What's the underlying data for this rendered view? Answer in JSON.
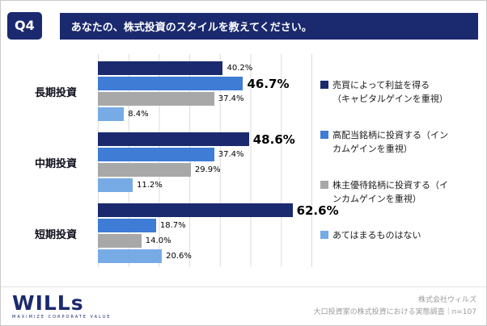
{
  "header": {
    "q_label": "Q4",
    "title": "あなたの、株式投資のスタイルを教えてください。"
  },
  "chart_data": {
    "type": "bar",
    "orientation": "horizontal",
    "title": "あなたの、株式投資のスタイルを教えてください。",
    "categories": [
      "長期投資",
      "中期投資",
      "短期投資"
    ],
    "series": [
      {
        "name": "売買によって利益を得る（キャピタルゲインを重視）",
        "legend_label": "売買によって利益を得る\n（キャピタルゲインを重視）",
        "color": "#1b2a6e",
        "values": [
          40.2,
          48.6,
          62.6
        ],
        "labels": [
          "40.2%",
          "48.6%",
          "62.6%"
        ],
        "emphasis": [
          false,
          true,
          true
        ]
      },
      {
        "name": "高配当銘柄に投資する（インカムゲインを重視）",
        "legend_label": "高配当銘柄に投資する（イン\nカムゲインを重視）",
        "color": "#3e7cd6",
        "values": [
          46.7,
          37.4,
          18.7
        ],
        "labels": [
          "46.7%",
          "37.4%",
          "18.7%"
        ],
        "emphasis": [
          true,
          false,
          false
        ]
      },
      {
        "name": "株主優待銘柄に投資する（インカムゲインを重視）",
        "legend_label": "株主優待銘柄に投資する（イ\nンカムゲインを重視）",
        "color": "#a8a8a8",
        "values": [
          37.4,
          29.9,
          14.0
        ],
        "labels": [
          "37.4%",
          "29.9%",
          "14.0%"
        ],
        "emphasis": [
          false,
          false,
          false
        ]
      },
      {
        "name": "あてはまるものはない",
        "legend_label": "あてはまるものはない",
        "color": "#77abe5",
        "values": [
          8.4,
          11.2,
          20.6
        ],
        "labels": [
          "8.4%",
          "11.2%",
          "20.6%"
        ],
        "emphasis": [
          false,
          false,
          false
        ]
      }
    ],
    "xlim": [
      0,
      70
    ],
    "gridline_step": 10,
    "grid": true,
    "legend_position": "right",
    "value_suffix": "%"
  },
  "footer": {
    "logo_text": "WILLs",
    "logo_tagline": "MAXIMIZE CORPORATE VALUE",
    "company": "株式会社ウィルズ",
    "survey_note": "大口投資家の株式投資における実態調査｜n=107"
  }
}
